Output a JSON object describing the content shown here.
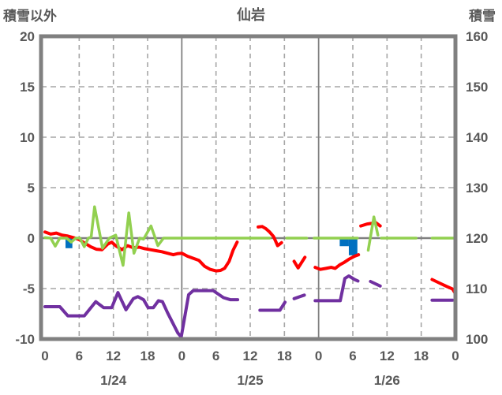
{
  "header": {
    "left_axis_title": "積雪以外",
    "chart_title": "仙岩",
    "right_axis_title": "積雪"
  },
  "chart_data": {
    "type": "line",
    "title": "仙岩",
    "grid": true,
    "left_axis": {
      "label": "積雪以外",
      "min": -10,
      "max": 20,
      "ticks": [
        20,
        15,
        10,
        5,
        0,
        -5,
        -10
      ]
    },
    "right_axis": {
      "label": "積雪",
      "min": 100,
      "max": 160,
      "ticks": [
        160,
        150,
        140,
        130,
        120,
        110,
        100
      ]
    },
    "x_axis": {
      "hours_total": 72,
      "tick_step_hours": 6,
      "hour_tick_labels": [
        "0",
        "6",
        "12",
        "18",
        "0",
        "6",
        "12",
        "18",
        "0",
        "6",
        "12",
        "18",
        "0"
      ],
      "day_labels": [
        {
          "label": "1/24",
          "t": 12
        },
        {
          "label": "1/25",
          "t": 36
        },
        {
          "label": "1/26",
          "t": 60
        }
      ],
      "solid_line_hours": [
        24,
        48
      ]
    },
    "colors": {
      "red": "#FF0000",
      "green": "#92D050",
      "purple": "#7030A0",
      "blue": "#0070C0",
      "frame": "#808080",
      "grid_dashed": "#A6A6A6",
      "zero_line": "#808080",
      "text": "#595959"
    },
    "series": [
      {
        "name": "red-line",
        "color": "#FF0000",
        "width": 4,
        "axis": "left",
        "segments": [
          [
            [
              0,
              0.6
            ],
            [
              1,
              0.4
            ],
            [
              2,
              0.5
            ],
            [
              3,
              0.3
            ],
            [
              4,
              0.2
            ],
            [
              5,
              0.05
            ],
            [
              6,
              -0.15
            ],
            [
              7,
              -0.5
            ],
            [
              8,
              -0.85
            ],
            [
              9,
              -1.1
            ],
            [
              10,
              -1.15
            ],
            [
              11,
              -0.6
            ],
            [
              11.7,
              -0.4
            ],
            [
              12.5,
              -0.8
            ],
            [
              13.5,
              -1.15
            ],
            [
              14.5,
              -0.75
            ],
            [
              15.5,
              -0.95
            ],
            [
              16.5,
              -0.9
            ],
            [
              17.5,
              -1.05
            ],
            [
              18.5,
              -1.15
            ],
            [
              19.5,
              -1.25
            ],
            [
              20.5,
              -1.35
            ],
            [
              21.5,
              -1.5
            ],
            [
              22.5,
              -1.65
            ],
            [
              23.2,
              -1.55
            ],
            [
              24,
              -1.5
            ],
            [
              25,
              -1.8
            ],
            [
              26,
              -2.0
            ],
            [
              27,
              -2.2
            ],
            [
              28,
              -2.8
            ],
            [
              29,
              -3.1
            ],
            [
              30,
              -3.25
            ],
            [
              30.8,
              -3.2
            ],
            [
              31.5,
              -3.0
            ],
            [
              32.3,
              -2.3
            ],
            [
              33,
              -1.2
            ],
            [
              33.7,
              -0.4
            ]
          ],
          [
            [
              37.4,
              1.1
            ],
            [
              38.1,
              1.15
            ],
            [
              38.7,
              0.95
            ],
            [
              39.4,
              0.6
            ],
            [
              40.1,
              0.15
            ],
            [
              40.8,
              -0.75
            ],
            [
              41.5,
              -0.45
            ]
          ],
          [
            [
              43.7,
              -2.3
            ],
            [
              44.4,
              -2.95
            ],
            [
              45.6,
              -1.9
            ]
          ],
          [
            [
              47.4,
              -2.9
            ],
            [
              48.3,
              -3.1
            ],
            [
              49.3,
              -3.0
            ],
            [
              50.2,
              -2.9
            ],
            [
              50.9,
              -3.0
            ],
            [
              51.7,
              -2.65
            ],
            [
              52.5,
              -2.4
            ],
            [
              53.3,
              -2.1
            ],
            [
              54.3,
              -1.8
            ],
            [
              55.0,
              -1.65
            ]
          ],
          [
            [
              55.4,
              1.2
            ],
            [
              56.5,
              1.4
            ],
            [
              57.2,
              1.45
            ],
            [
              58,
              1.55
            ],
            [
              58.8,
              1.2
            ]
          ],
          [
            [
              67.9,
              -4.1
            ],
            [
              69.2,
              -4.45
            ],
            [
              70.5,
              -4.8
            ],
            [
              71.5,
              -5.05
            ],
            [
              72,
              -5.5
            ]
          ]
        ]
      },
      {
        "name": "purple-line",
        "color": "#7030A0",
        "width": 4,
        "axis": "left",
        "segments": [
          [
            [
              0,
              -6.8
            ],
            [
              2.6,
              -6.8
            ],
            [
              4,
              -7.7
            ],
            [
              6.9,
              -7.7
            ],
            [
              8.9,
              -6.3
            ],
            [
              10.3,
              -6.9
            ],
            [
              11.7,
              -6.9
            ],
            [
              12.8,
              -5.4
            ],
            [
              14.2,
              -7.1
            ],
            [
              15.5,
              -6.0
            ],
            [
              16.3,
              -5.8
            ],
            [
              17.3,
              -6.1
            ],
            [
              18.1,
              -6.9
            ],
            [
              19,
              -6.9
            ],
            [
              19.9,
              -6.2
            ],
            [
              20.6,
              -6.3
            ],
            [
              21.5,
              -7.4
            ],
            [
              23.3,
              -9.4
            ],
            [
              23.9,
              -9.8
            ],
            [
              25.2,
              -5.6
            ],
            [
              26,
              -5.2
            ],
            [
              29.5,
              -5.2
            ],
            [
              31.3,
              -5.9
            ],
            [
              32.5,
              -6.1
            ],
            [
              33.8,
              -6.1
            ]
          ],
          [
            [
              37.7,
              -7.15
            ],
            [
              41.2,
              -7.15
            ],
            [
              42.1,
              -6.35
            ]
          ],
          [
            [
              43.7,
              -6.0
            ],
            [
              45.5,
              -5.65
            ]
          ],
          [
            [
              47.4,
              -6.2
            ],
            [
              51.8,
              -6.2
            ],
            [
              52.6,
              -4.0
            ],
            [
              53.3,
              -3.75
            ],
            [
              54.3,
              -4.1
            ],
            [
              54.9,
              -4.25
            ]
          ],
          [
            [
              57.1,
              -4.3
            ],
            [
              58.8,
              -4.75
            ]
          ],
          [
            [
              67.9,
              -6.15
            ],
            [
              71.5,
              -6.15
            ]
          ]
        ]
      },
      {
        "name": "green-line",
        "color": "#92D050",
        "width": 3.5,
        "axis": "left",
        "segments": [
          [
            [
              0,
              0.05
            ],
            [
              1,
              0
            ],
            [
              1.8,
              -0.8
            ],
            [
              2.6,
              0
            ],
            [
              3.8,
              0
            ],
            [
              4.6,
              -0.4
            ],
            [
              5.4,
              0
            ],
            [
              6.1,
              0
            ],
            [
              6.9,
              -0.85
            ],
            [
              7.6,
              0
            ],
            [
              8.1,
              0.1
            ],
            [
              8.7,
              3.1
            ],
            [
              10.1,
              -1.0
            ],
            [
              11.3,
              0
            ],
            [
              12.4,
              0.3
            ],
            [
              13.7,
              -2.7
            ],
            [
              14.7,
              2.5
            ],
            [
              15.6,
              -1.5
            ],
            [
              16.6,
              0
            ],
            [
              17.3,
              -0.1
            ],
            [
              18.6,
              1.2
            ],
            [
              19.8,
              -0.75
            ],
            [
              20.8,
              0
            ],
            [
              39.4,
              0
            ]
          ],
          [
            [
              42.4,
              0
            ],
            [
              45.9,
              0
            ]
          ],
          [
            [
              47.2,
              0
            ],
            [
              54.8,
              0
            ]
          ],
          [
            [
              56.7,
              -1.2
            ],
            [
              57.7,
              2.1
            ],
            [
              58.4,
              0.3
            ]
          ],
          [
            [
              59,
              0
            ],
            [
              65.1,
              0
            ]
          ],
          [
            [
              67.9,
              0
            ],
            [
              72,
              0
            ]
          ]
        ]
      }
    ],
    "bars": {
      "name": "blue-bars",
      "color": "#0070C0",
      "axis": "left",
      "items": [
        {
          "t0": 3.6,
          "t1": 4.8,
          "value": -1.0
        },
        {
          "t0": 51.7,
          "t1": 53.3,
          "value": -0.8
        },
        {
          "t0": 53.3,
          "t1": 54.8,
          "value": -1.7
        }
      ]
    }
  }
}
